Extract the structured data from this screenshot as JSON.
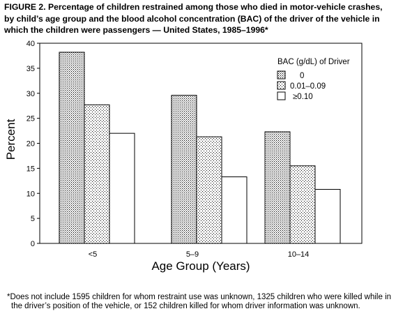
{
  "figure": {
    "label": "FIGURE 2.",
    "title": "Percentage of children restrained among those who died in motor-vehicle crashes, by child’s age group and the blood alcohol concentration (BAC) of the driver of the vehicle in which the children were passengers — United States, 1985–1996*",
    "footnote": "*Does not include 1595 children for whom restraint use was unknown, 1325 children who were killed while in the driver’s position of the vehicle, or 152 children killed for whom driver information was unknown."
  },
  "chart_data": {
    "type": "bar",
    "title": "",
    "xlabel": "Age Group (Years)",
    "ylabel": "Percent",
    "categories": [
      "<5",
      "5–9",
      "10–14"
    ],
    "series": [
      {
        "name": "0",
        "values": [
          38.2,
          29.6,
          22.3
        ],
        "pattern": "dots-dense"
      },
      {
        "name": "0.01–0.09",
        "values": [
          27.7,
          21.3,
          15.5
        ],
        "pattern": "dots-light"
      },
      {
        "name": "≥0.10",
        "values": [
          22.0,
          13.3,
          10.8
        ],
        "pattern": "white"
      }
    ],
    "ylim": [
      0,
      40
    ],
    "yticks": [
      0,
      5,
      10,
      15,
      20,
      25,
      30,
      35,
      40
    ],
    "grid": false,
    "legend": {
      "title": "BAC (g/dL) of Driver",
      "placement": "top-right"
    },
    "colors": {
      "bar_stroke": "#000000",
      "dot": "#000000",
      "fill": "#ffffff"
    }
  }
}
